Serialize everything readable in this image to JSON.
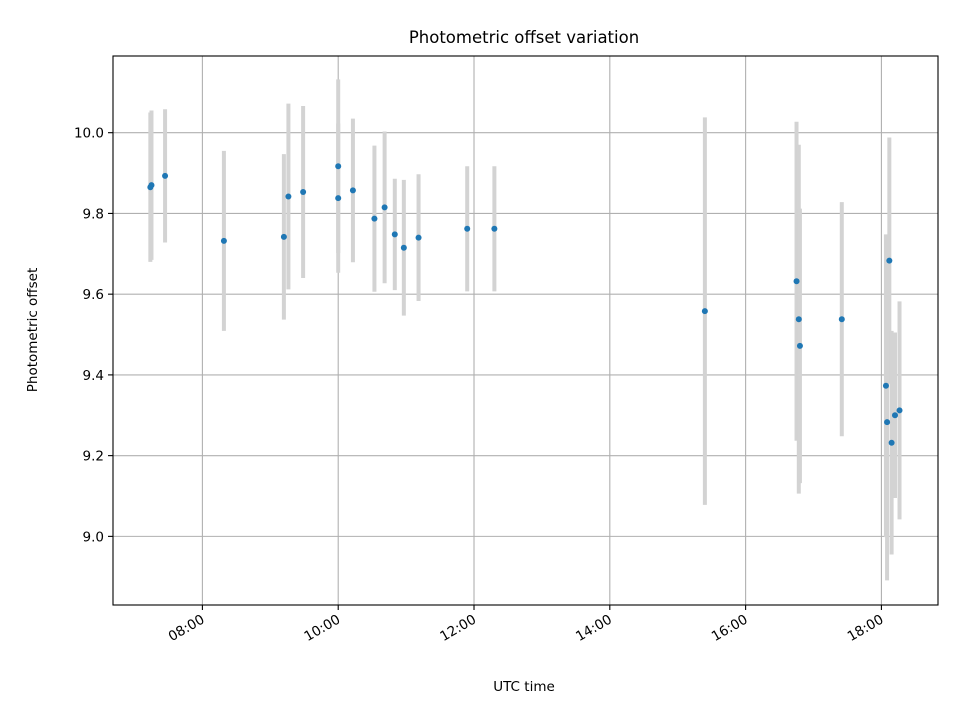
{
  "chart_data": {
    "type": "scatter",
    "title": "Photometric offset variation",
    "xlabel": "UTC time",
    "ylabel": "Photometric offset",
    "xlim": [
      "06:41",
      "18:50"
    ],
    "ylim": [
      8.83,
      10.19
    ],
    "x_ticks": [
      "08:00",
      "10:00",
      "12:00",
      "14:00",
      "16:00",
      "18:00"
    ],
    "y_ticks": [
      "9.0",
      "9.2",
      "9.4",
      "9.6",
      "9.8",
      "10.0"
    ],
    "grid": true,
    "legend": "none",
    "colors": {
      "points": "#1f77b4",
      "errorbars": "#d3d3d3",
      "grid": "#b0b0b0"
    },
    "points": [
      {
        "t": "07:14",
        "y": 9.865,
        "err": 0.185
      },
      {
        "t": "07:15",
        "y": 9.87,
        "err": 0.185
      },
      {
        "t": "07:27",
        "y": 9.893,
        "err": 0.165
      },
      {
        "t": "08:19",
        "y": 9.732,
        "err": 0.223
      },
      {
        "t": "09:12",
        "y": 9.742,
        "err": 0.205
      },
      {
        "t": "09:16",
        "y": 9.842,
        "err": 0.23
      },
      {
        "t": "09:29",
        "y": 9.853,
        "err": 0.213
      },
      {
        "t": "10:00",
        "y": 9.838,
        "err": 0.185
      },
      {
        "t": "10:00",
        "y": 9.917,
        "err": 0.215
      },
      {
        "t": "10:13",
        "y": 9.857,
        "err": 0.178
      },
      {
        "t": "10:32",
        "y": 9.787,
        "err": 0.181
      },
      {
        "t": "10:41",
        "y": 9.815,
        "err": 0.188
      },
      {
        "t": "10:50",
        "y": 9.748,
        "err": 0.138
      },
      {
        "t": "10:58",
        "y": 9.715,
        "err": 0.168
      },
      {
        "t": "11:11",
        "y": 9.74,
        "err": 0.157
      },
      {
        "t": "11:54",
        "y": 9.762,
        "err": 0.155
      },
      {
        "t": "12:18",
        "y": 9.762,
        "err": 0.155
      },
      {
        "t": "15:24",
        "y": 9.558,
        "err": 0.48
      },
      {
        "t": "16:45",
        "y": 9.632,
        "err": 0.395
      },
      {
        "t": "16:47",
        "y": 9.538,
        "err": 0.432
      },
      {
        "t": "16:48",
        "y": 9.472,
        "err": 0.34
      },
      {
        "t": "17:25",
        "y": 9.538,
        "err": 0.29
      },
      {
        "t": "18:04",
        "y": 9.373,
        "err": 0.375
      },
      {
        "t": "18:05",
        "y": 9.283,
        "err": 0.392
      },
      {
        "t": "18:07",
        "y": 9.683,
        "err": 0.305
      },
      {
        "t": "18:09",
        "y": 9.232,
        "err": 0.277
      },
      {
        "t": "18:12",
        "y": 9.3,
        "err": 0.205
      },
      {
        "t": "18:16",
        "y": 9.312,
        "err": 0.27
      }
    ]
  }
}
